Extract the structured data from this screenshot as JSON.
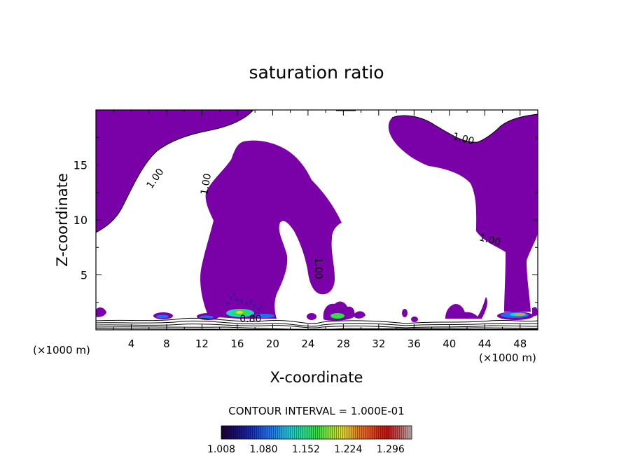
{
  "chart_data": {
    "type": "contour",
    "title": "saturation ratio",
    "xlabel": "X-coordinate",
    "ylabel": "Z-coordinate",
    "x_unit": "(×1000 m)",
    "xlim": [
      0,
      50
    ],
    "ylim": [
      0,
      20
    ],
    "x_ticks": [
      4,
      8,
      12,
      16,
      20,
      24,
      28,
      32,
      36,
      40,
      44,
      48
    ],
    "y_ticks": [
      5,
      10,
      15
    ],
    "contour_interval_label": "CONTOUR INTERVAL = 1.000E-01",
    "contour_labels": [
      {
        "text": "1.00",
        "x": 7.0,
        "y": 13.6,
        "angle": -55
      },
      {
        "text": "1.00",
        "x": 12.8,
        "y": 13.2,
        "angle": -80
      },
      {
        "text": "1.00",
        "x": 24.8,
        "y": 5.6,
        "angle": 90
      },
      {
        "text": "1.00",
        "x": 41.5,
        "y": 17.1,
        "angle": 15
      },
      {
        "text": "1.00",
        "x": 44.5,
        "y": 7.9,
        "angle": 15
      },
      {
        "text": "0.80",
        "x": 17.5,
        "y": 0.7,
        "angle": 0
      }
    ],
    "colorbar": {
      "ticks": [
        "1.008",
        "1.080",
        "1.152",
        "1.224",
        "1.296"
      ],
      "min": 1.008,
      "max": 1.332
    },
    "colors": {
      "region_fill": "#7a00a8",
      "colorbar_stops": [
        "#1a0030",
        "#1a1a9a",
        "#1e6ff0",
        "#1ed0c8",
        "#30e040",
        "#d8e030",
        "#e86020",
        "#c01010",
        "#b8b0b0"
      ]
    }
  }
}
